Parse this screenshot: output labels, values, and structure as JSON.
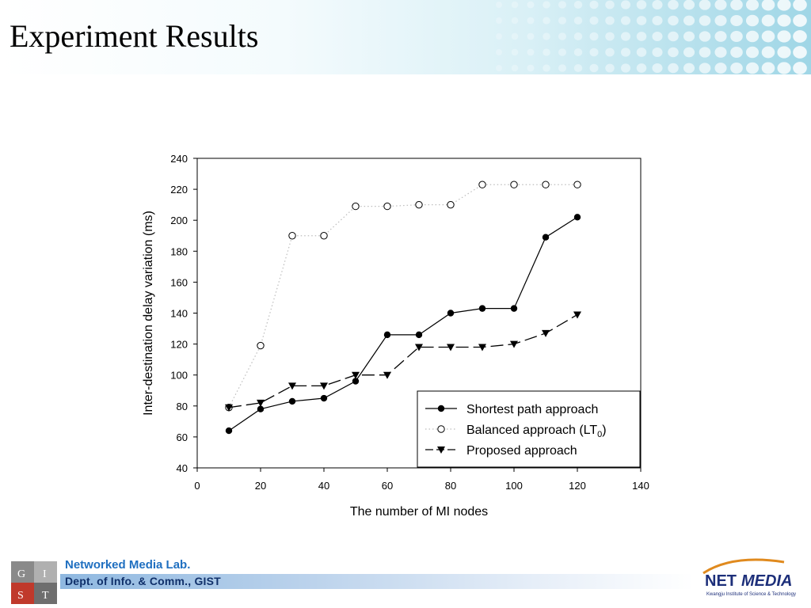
{
  "slide": {
    "title": "Experiment Results"
  },
  "footer": {
    "lab_name": "Networked Media Lab.",
    "dept_name": "Dept. of Info. & Comm., GIST",
    "gist_letters": [
      "G",
      "I",
      "S",
      "T"
    ],
    "netmedia_word_net": "NET",
    "netmedia_word_media": "MEDIA",
    "netmedia_tagline": "Kwangju Institute of Science & Technology"
  },
  "colors": {
    "accent_blue": "#1f6fc0",
    "gist_red": "#c0392b",
    "header_teal": "#9fd6e6"
  },
  "chart_data": {
    "type": "line",
    "title": "",
    "xlabel": "The number of MI nodes",
    "ylabel": "Inter-destination delay variation (ms)",
    "xlim": [
      0,
      140
    ],
    "ylim": [
      40,
      240
    ],
    "xticks": [
      0,
      20,
      40,
      60,
      80,
      100,
      120,
      140
    ],
    "yticks": [
      40,
      60,
      80,
      100,
      120,
      140,
      160,
      180,
      200,
      220,
      240
    ],
    "grid": false,
    "legend_position": "bottom-right",
    "x": [
      10,
      20,
      30,
      40,
      50,
      60,
      70,
      80,
      90,
      100,
      110,
      120
    ],
    "series": [
      {
        "name": "Shortest path approach",
        "marker": "filled-circle",
        "line": "solid",
        "values": [
          64,
          78,
          83,
          85,
          96,
          126,
          126,
          140,
          143,
          143,
          189,
          202
        ]
      },
      {
        "name": "Balanced approach (LT",
        "name_subscript": "0",
        "name_suffix": ")",
        "marker": "open-circle",
        "line": "dotted",
        "values": [
          79,
          119,
          190,
          190,
          209,
          209,
          210,
          210,
          223,
          223,
          223,
          223
        ]
      },
      {
        "name": "Proposed approach",
        "marker": "filled-triangle-down",
        "line": "dashed",
        "values": [
          79,
          82,
          93,
          93,
          100,
          100,
          118,
          118,
          118,
          120,
          127,
          139
        ]
      }
    ]
  }
}
